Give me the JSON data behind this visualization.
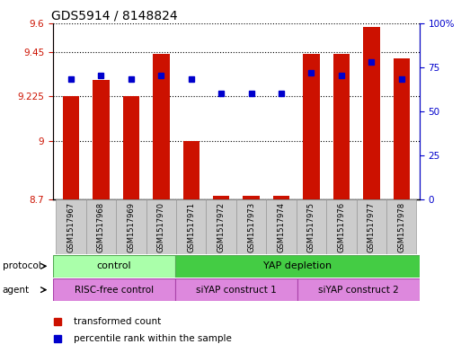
{
  "title": "GDS5914 / 8148824",
  "samples": [
    "GSM1517967",
    "GSM1517968",
    "GSM1517969",
    "GSM1517970",
    "GSM1517971",
    "GSM1517972",
    "GSM1517973",
    "GSM1517974",
    "GSM1517975",
    "GSM1517976",
    "GSM1517977",
    "GSM1517978"
  ],
  "bar_values": [
    9.225,
    9.31,
    9.225,
    9.44,
    9.0,
    8.72,
    8.72,
    8.72,
    9.44,
    9.44,
    9.58,
    9.42
  ],
  "percentile_values": [
    68,
    70,
    68,
    70,
    68,
    60,
    60,
    60,
    72,
    70,
    78,
    68
  ],
  "ymin": 8.7,
  "ymax": 9.6,
  "yticks": [
    8.7,
    9.0,
    9.225,
    9.45,
    9.6
  ],
  "ytick_labels": [
    "8.7",
    "9",
    "9.225",
    "9.45",
    "9.6"
  ],
  "y2min": 0,
  "y2max": 100,
  "y2ticks": [
    0,
    25,
    50,
    75,
    100
  ],
  "y2tick_labels": [
    "0",
    "25",
    "50",
    "75",
    "100%"
  ],
  "bar_color": "#cc1100",
  "dot_color": "#0000cc",
  "protocol_color_light": "#aaffaa",
  "protocol_color_dark": "#44cc44",
  "agent_color": "#dd88dd",
  "grid_linestyle": "dotted",
  "title_fontsize": 10,
  "tick_label_color_left": "#cc1100",
  "tick_label_color_right": "#0000cc",
  "sample_box_color": "#cccccc",
  "sample_box_edge": "#999999"
}
